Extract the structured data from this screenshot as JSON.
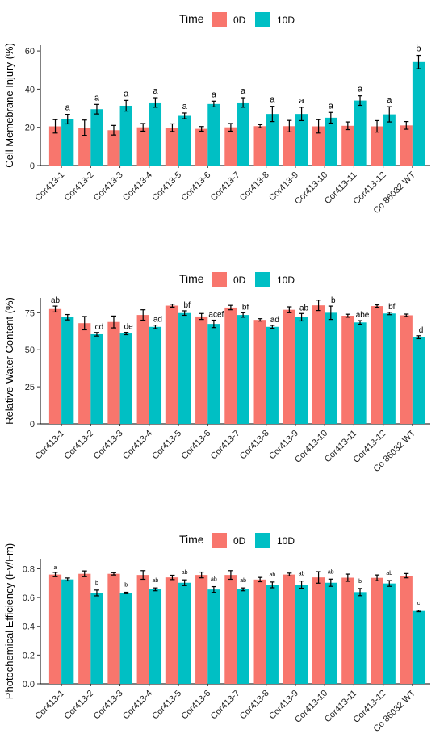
{
  "legend": {
    "title": "Time",
    "entries": [
      {
        "label": "0D",
        "color": "#F8766D"
      },
      {
        "label": "10D",
        "color": "#00BFC4"
      }
    ]
  },
  "chart_data": [
    {
      "type": "bar",
      "ylabel": "Cell Memebrane Injury (%)",
      "xlabel": "",
      "ylim": [
        0,
        63
      ],
      "yticks": [
        0,
        20,
        40,
        60
      ],
      "categories": [
        "Cor413-1",
        "Cor413-2",
        "Cor413-3",
        "Cor413-4",
        "Cor413-5",
        "Cor413-6",
        "Cor413-7",
        "Cor413-8",
        "Cor413-9",
        "Cor413-10",
        "Cor413-11",
        "Cor413-12",
        "Co 86032 WT"
      ],
      "series": [
        {
          "name": "0D",
          "color": "#F8766D",
          "values": [
            20.5,
            19.8,
            18.5,
            20.0,
            19.8,
            19.2,
            20.0,
            20.6,
            20.6,
            20.5,
            20.8,
            20.5,
            21.0
          ],
          "errors": [
            3.5,
            4.0,
            2.5,
            2.0,
            2.0,
            1.2,
            2.0,
            0.8,
            3.0,
            3.5,
            2.0,
            3.0,
            2.0
          ]
        },
        {
          "name": "10D",
          "color": "#00BFC4",
          "values": [
            24.3,
            29.5,
            31.3,
            33.0,
            26.0,
            32.2,
            33.0,
            27.0,
            27.0,
            25.0,
            34.0,
            26.8,
            54.2
          ],
          "errors": [
            2.5,
            2.5,
            2.8,
            2.5,
            1.5,
            1.5,
            2.5,
            4.0,
            3.5,
            2.8,
            2.5,
            4.0,
            3.5
          ]
        }
      ],
      "annotations": [
        "a",
        "a",
        "a",
        "a",
        "a",
        "a",
        "a",
        "a",
        "a",
        "a",
        "a",
        "a",
        "b"
      ],
      "legend_position": "top"
    },
    {
      "type": "bar",
      "ylabel": "Relative Water Content (%)",
      "xlabel": "",
      "ylim": [
        0,
        85
      ],
      "yticks": [
        0,
        25,
        50,
        75
      ],
      "categories": [
        "Cor413-1",
        "Cor413-2",
        "Cor413-3",
        "Cor413-4",
        "Cor413-5",
        "Cor413-6",
        "Cor413-7",
        "Cor413-8",
        "Cor413-9",
        "Cor413-10",
        "Cor413-11",
        "Cor413-12",
        "Co 86032 WT"
      ],
      "series": [
        {
          "name": "0D",
          "color": "#F8766D",
          "values": [
            77.5,
            68.0,
            68.8,
            73.5,
            79.8,
            72.5,
            78.5,
            70.2,
            77.0,
            80.0,
            73.0,
            79.5,
            73.3
          ],
          "errors": [
            2.0,
            4.5,
            4.0,
            3.5,
            1.0,
            2.0,
            1.5,
            0.8,
            2.0,
            3.5,
            1.0,
            0.8,
            0.8
          ]
        },
        {
          "name": "10D",
          "color": "#00BFC4",
          "values": [
            72.0,
            60.5,
            61.0,
            65.5,
            74.8,
            67.5,
            73.5,
            65.5,
            72.0,
            75.0,
            68.5,
            74.5,
            58.5
          ],
          "errors": [
            1.8,
            1.2,
            0.8,
            1.2,
            1.5,
            2.5,
            1.5,
            1.0,
            2.5,
            4.5,
            1.2,
            0.8,
            1.0
          ]
        }
      ],
      "annotations": [
        "ab",
        "cd",
        "de",
        "ad",
        "bf",
        "acef",
        "bf",
        "ad",
        "ab",
        "b",
        "abe",
        "bf",
        "d"
      ],
      "legend_position": "top"
    },
    {
      "type": "bar",
      "ylabel": "Photochemical Efficiency (Fv/Fm)",
      "xlabel": "",
      "ylim": [
        0,
        0.87
      ],
      "yticks": [
        0.0,
        0.2,
        0.4,
        0.6,
        0.8
      ],
      "categories": [
        "Cor413-1",
        "Cor413-2",
        "Cor413-3",
        "Cor413-4",
        "Cor413-5",
        "Cor413-6",
        "Cor413-7",
        "Cor413-8",
        "Cor413-9",
        "Cor413-10",
        "Cor413-11",
        "Cor413-12",
        "Co 86032 WT"
      ],
      "series": [
        {
          "name": "0D",
          "color": "#F8766D",
          "values": [
            0.76,
            0.765,
            0.765,
            0.757,
            0.74,
            0.757,
            0.757,
            0.725,
            0.76,
            0.74,
            0.738,
            0.737,
            0.752
          ],
          "errors": [
            0.015,
            0.02,
            0.008,
            0.03,
            0.015,
            0.02,
            0.03,
            0.015,
            0.01,
            0.04,
            0.025,
            0.02,
            0.015
          ]
        },
        {
          "name": "10D",
          "color": "#00BFC4",
          "values": [
            0.726,
            0.632,
            0.632,
            0.657,
            0.703,
            0.656,
            0.657,
            0.688,
            0.69,
            0.703,
            0.638,
            0.698,
            0.507
          ],
          "errors": [
            0.01,
            0.02,
            0.005,
            0.01,
            0.02,
            0.02,
            0.01,
            0.02,
            0.025,
            0.025,
            0.025,
            0.02,
            0.005
          ]
        }
      ],
      "annotations": [
        "a",
        "b",
        "b",
        "ab",
        "ab",
        "ab",
        "ab",
        "ab",
        "ab",
        "ab",
        "b",
        "ab",
        "c"
      ],
      "legend_position": "top"
    }
  ]
}
